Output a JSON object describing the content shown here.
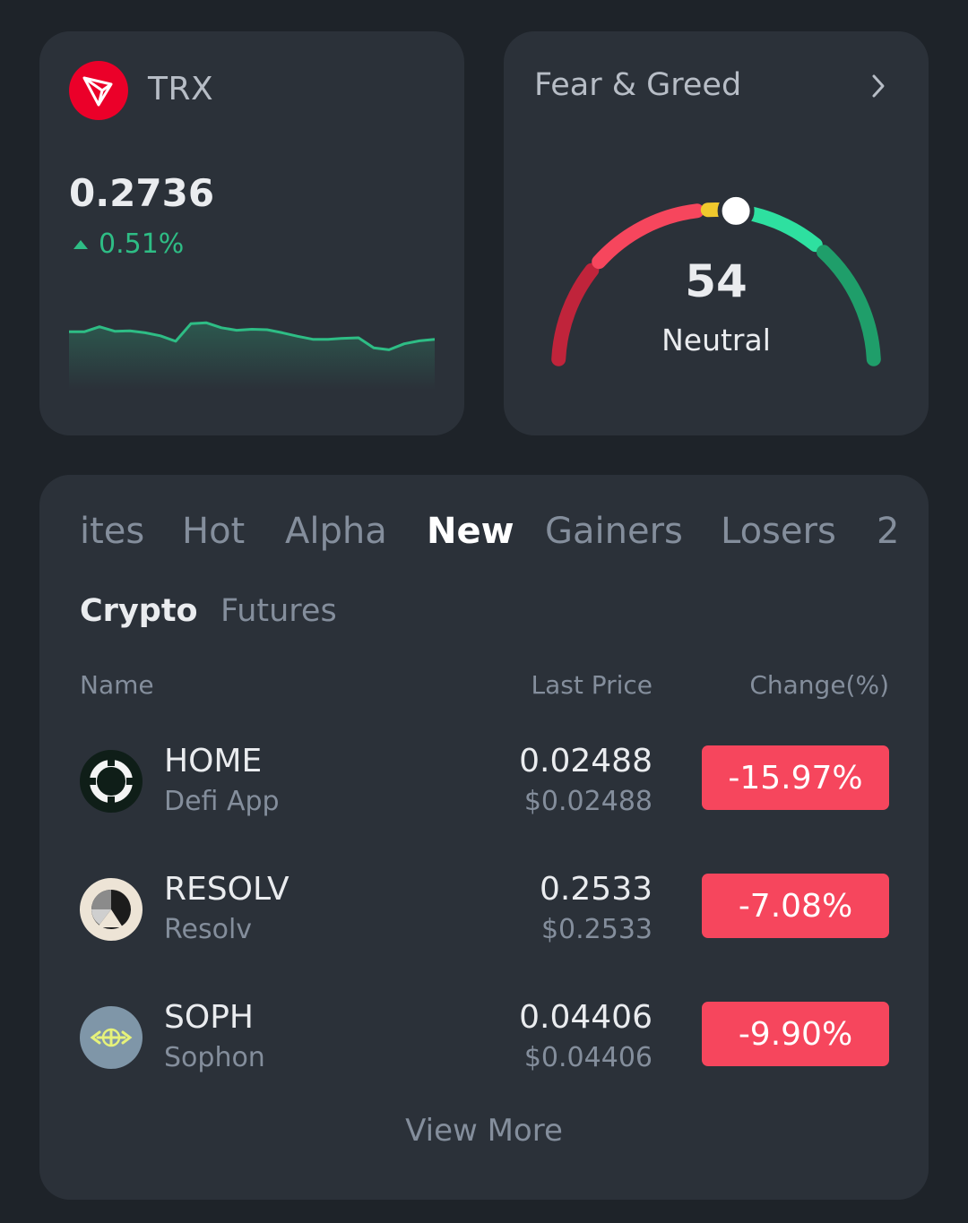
{
  "ticker": {
    "symbol": "TRX",
    "price": "0.2736",
    "change": "0.51%",
    "change_direction": "up",
    "up_color": "#2ebd85",
    "logo_color": "#eb0029",
    "sparkline": [
      0.62,
      0.62,
      0.72,
      0.63,
      0.64,
      0.6,
      0.54,
      0.43,
      0.78,
      0.8,
      0.7,
      0.65,
      0.67,
      0.66,
      0.6,
      0.53,
      0.47,
      0.47,
      0.49,
      0.5,
      0.3,
      0.26,
      0.38,
      0.44,
      0.47
    ]
  },
  "fear_greed": {
    "title": "Fear & Greed",
    "value": "54",
    "label": "Neutral",
    "score": 54,
    "segment_colors": [
      "#c0243b",
      "#f6465d",
      "#f0c92d",
      "#2ee0a0",
      "#1f9e6a"
    ]
  },
  "market": {
    "tabs": [
      {
        "label": "ites",
        "active": false
      },
      {
        "label": "Hot",
        "active": false
      },
      {
        "label": "Alpha",
        "active": false
      },
      {
        "label": "New",
        "active": true
      },
      {
        "label": "Gainers",
        "active": false
      },
      {
        "label": "Losers",
        "active": false
      },
      {
        "label": "2",
        "active": false
      }
    ],
    "subtabs": [
      {
        "label": "Crypto",
        "active": true
      },
      {
        "label": "Futures",
        "active": false
      }
    ],
    "columns": {
      "name": "Name",
      "price": "Last Price",
      "change": "Change(%)"
    },
    "rows": [
      {
        "symbol": "HOME",
        "name": "Defi App",
        "price": "0.02488",
        "usd": "$0.02488",
        "change": "-15.97%",
        "icon": "home-coin-icon"
      },
      {
        "symbol": "RESOLV",
        "name": "Resolv",
        "price": "0.2533",
        "usd": "$0.2533",
        "change": "-7.08%",
        "icon": "resolv-coin-icon"
      },
      {
        "symbol": "SOPH",
        "name": "Sophon",
        "price": "0.04406",
        "usd": "$0.04406",
        "change": "-9.90%",
        "icon": "soph-coin-icon"
      }
    ],
    "view_more": "View More",
    "down_color": "#f6465d"
  }
}
